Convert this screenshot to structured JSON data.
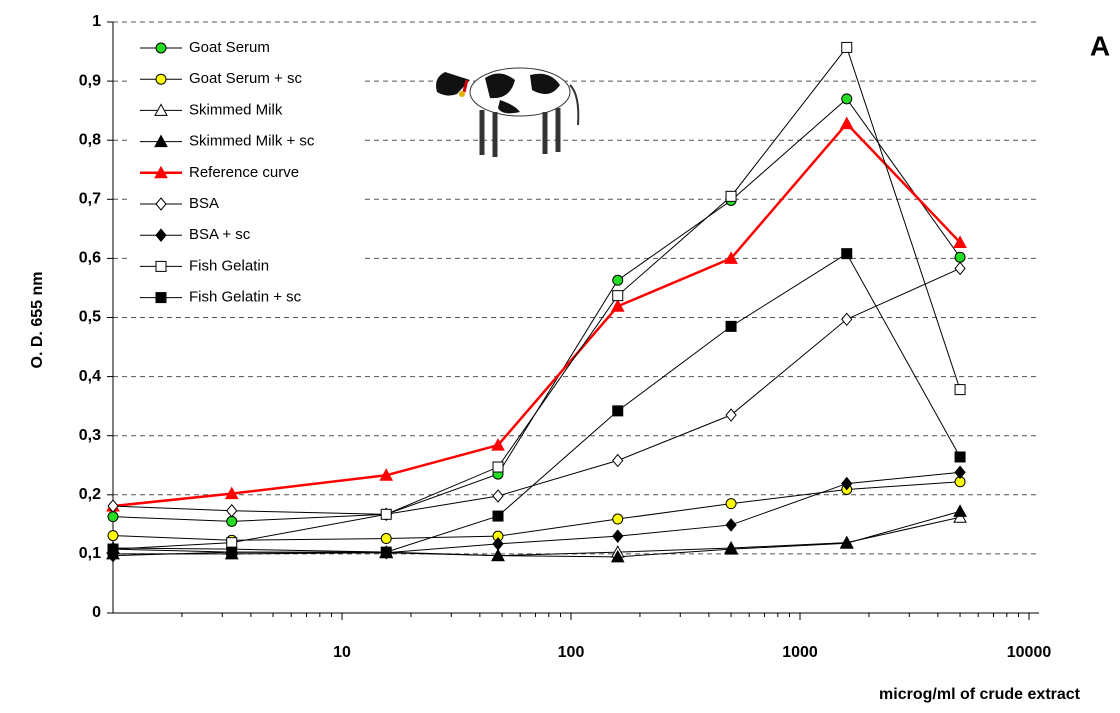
{
  "chart_data": {
    "type": "line",
    "y_label": "O. D. 655 nm",
    "x_label": "microg/ml of crude extract",
    "panel_label": "A",
    "log_x": true,
    "grid": true,
    "xlim": [
      1,
      10000
    ],
    "xticks": [
      10,
      100,
      1000,
      10000
    ],
    "ylim": [
      0,
      1
    ],
    "yticks": [
      0,
      {
        "value": 0.1,
        "label": "0,1"
      },
      {
        "value": 0.2,
        "label": "0,2"
      },
      {
        "value": 0.3,
        "label": "0,3"
      },
      {
        "value": 0.4,
        "label": "0,4"
      },
      {
        "value": 0.5,
        "label": "0,5"
      },
      {
        "value": 0.6,
        "label": "0,6"
      },
      {
        "value": 0.7,
        "label": "0,7"
      },
      {
        "value": 0.8,
        "label": "0,8"
      },
      {
        "value": 0.9,
        "label": "0,9"
      },
      1
    ],
    "x": [
      1,
      3.3,
      15.6,
      48,
      160,
      500,
      1600,
      5000
    ],
    "series": [
      {
        "name": "Goat Serum",
        "color": "#000000",
        "marker": "circle",
        "marker_fill": "#22dd22",
        "values": [
          0.163,
          0.155,
          0.167,
          0.235,
          0.563,
          0.698,
          0.87,
          0.602
        ]
      },
      {
        "name": "Goat Serum + sc",
        "color": "#000000",
        "marker": "circle",
        "marker_fill": "#ffff00",
        "values": [
          0.131,
          0.123,
          0.126,
          0.13,
          0.159,
          0.185,
          0.209,
          0.222
        ]
      },
      {
        "name": "Skimmed Milk",
        "color": "#000000",
        "marker": "triangle",
        "marker_fill": "#ffffff",
        "values": [
          0.11,
          0.108,
          0.103,
          0.097,
          0.103,
          0.11,
          0.119,
          0.162
        ]
      },
      {
        "name": "Skimmed Milk + sc",
        "color": "#000000",
        "marker": "triangle",
        "marker_fill": "#000000",
        "values": [
          0.1,
          0.1,
          0.102,
          0.097,
          0.095,
          0.108,
          0.118,
          0.172
        ]
      },
      {
        "name": "Reference curve",
        "color": "#ff0000",
        "marker": "triangle",
        "marker_fill": "#ff0000",
        "values": [
          0.181,
          0.202,
          0.233,
          0.284,
          0.519,
          0.6,
          0.828,
          0.627
        ]
      },
      {
        "name": "BSA",
        "color": "#000000",
        "marker": "diamond",
        "marker_fill": "#ffffff",
        "values": [
          0.181,
          0.173,
          0.167,
          0.198,
          0.258,
          0.335,
          0.497,
          0.583
        ]
      },
      {
        "name": "BSA + sc",
        "color": "#000000",
        "marker": "diamond",
        "marker_fill": "#000000",
        "values": [
          0.097,
          0.103,
          0.102,
          0.117,
          0.13,
          0.149,
          0.219,
          0.238
        ]
      },
      {
        "name": "Fish Gelatin",
        "color": "#000000",
        "marker": "square",
        "marker_fill": "#ffffff",
        "values": [
          0.108,
          0.119,
          0.167,
          0.247,
          0.537,
          0.705,
          0.957,
          0.378
        ]
      },
      {
        "name": "Fish Gelatin + sc",
        "color": "#000000",
        "marker": "square",
        "marker_fill": "#000000",
        "values": [
          0.108,
          0.103,
          0.103,
          0.164,
          0.342,
          0.485,
          0.608,
          0.264
        ]
      }
    ]
  }
}
